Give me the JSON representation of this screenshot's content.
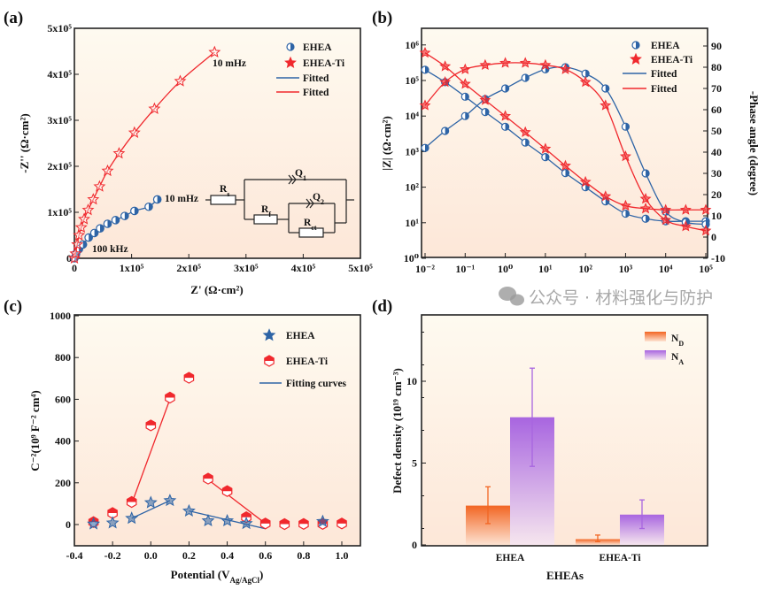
{
  "watermark": "公众号 · 材料强化与防护",
  "colors": {
    "ehea": "#2e64a6",
    "ehea_ti": "#f0282d",
    "nd": "#f26522",
    "na": "#a865e0",
    "bg_top": "#fefaf0",
    "bg_bottom": "#fde7d8"
  },
  "chart_data": [
    {
      "panel": "(a)",
      "type": "scatter",
      "xlabel": "Z' (Ω·cm²)",
      "ylabel": "-Z'' (Ω·cm²)",
      "xlim": [
        0,
        500000
      ],
      "ylim": [
        0,
        500000
      ],
      "xticks": [
        "0",
        "1x10⁵",
        "2x10⁵",
        "3x10⁵",
        "4x10⁵",
        "5x10⁵"
      ],
      "yticks": [
        "0",
        "1x10⁵",
        "2x10⁵",
        "3x10⁵",
        "4x10⁵",
        "5x10⁵"
      ],
      "legend": [
        "EHEA",
        "EHEA-Ti",
        "Fitted",
        "Fitted"
      ],
      "legend_position": "top-right",
      "annotations": {
        "ehea_end": "10 mHz",
        "ti_end": "10 mHz",
        "high_freq": "100 kHz"
      },
      "circuit": {
        "rs": [
          "R",
          "s"
        ],
        "q1": [
          "Q",
          "1"
        ],
        "rf": [
          "R",
          "f"
        ],
        "q2": [
          "Q",
          "2"
        ],
        "rct": [
          "R",
          "ct"
        ]
      },
      "series": [
        {
          "name": "EHEA",
          "x": [
            0,
            3000,
            8000,
            15000,
            25000,
            35000,
            45000,
            58000,
            72000,
            88000,
            105000,
            130000,
            145000
          ],
          "y": [
            0,
            10000,
            20000,
            30000,
            45000,
            55000,
            65000,
            75000,
            83000,
            92000,
            103000,
            112000,
            128000
          ]
        },
        {
          "name": "EHEA-Ti",
          "x": [
            0,
            2000,
            5000,
            8000,
            12000,
            17000,
            24000,
            33000,
            44000,
            58000,
            78000,
            105000,
            140000,
            185000,
            245000
          ],
          "y": [
            0,
            10000,
            30000,
            50000,
            67000,
            85000,
            105000,
            128000,
            156000,
            190000,
            228000,
            273000,
            325000,
            385000,
            448000
          ]
        }
      ]
    },
    {
      "panel": "(b)",
      "type": "line",
      "xlabel": "",
      "ylabel": "|Z| (Ω·cm²)",
      "y2label": "-Phase angle (degree)",
      "xscale": "log",
      "yscale": "log",
      "xlim": [
        0.01,
        100000
      ],
      "ylim": [
        1,
        3000000
      ],
      "y2lim": [
        -10,
        98
      ],
      "xticks": [
        "10⁻²",
        "10⁻¹",
        "10⁰",
        "10¹",
        "10²",
        "10³",
        "10⁴",
        "10⁵"
      ],
      "yticks": [
        "10⁰",
        "10¹",
        "10²",
        "10³",
        "10⁴",
        "10⁵",
        "10⁶"
      ],
      "y2ticks": [
        "-10",
        "0",
        "10",
        "20",
        "30",
        "40",
        "50",
        "60",
        "70",
        "80",
        "90"
      ],
      "legend": [
        "EHEA",
        "EHEA-Ti",
        "Fitted",
        "Fitted"
      ],
      "legend_position": "top-right",
      "frequency": [
        0.01,
        0.0316,
        0.1,
        0.316,
        1,
        3.16,
        10,
        31.6,
        100,
        316,
        1000,
        3162,
        10000,
        31623,
        100000
      ],
      "series": [
        {
          "name": "EHEA",
          "modulus": [
            200000,
            90000,
            35000,
            13000,
            5000,
            1800,
            700,
            250,
            100,
            40,
            18,
            13,
            11,
            11,
            11
          ],
          "phase": [
            42,
            50,
            57,
            65,
            70,
            75,
            79,
            80,
            77,
            70,
            52,
            30,
            12,
            7,
            6
          ]
        },
        {
          "name": "EHEA-Ti",
          "modulus": [
            600000,
            250000,
            80000,
            28000,
            10000,
            3500,
            1200,
            400,
            140,
            55,
            30,
            25,
            23,
            23,
            23
          ],
          "phase": [
            62,
            73,
            79,
            81,
            82,
            82,
            81,
            79,
            73,
            62,
            38,
            18,
            8,
            5,
            3
          ]
        }
      ]
    },
    {
      "panel": "(c)",
      "type": "scatter",
      "xlabel": "Potential (V",
      "xlabel_sub": "Ag/AgCl",
      "xlabel_end": ")",
      "ylabel": "C⁻²(10⁹ F⁻² cm⁴)",
      "xlim": [
        -0.4,
        1.1
      ],
      "ylim": [
        -100,
        1000
      ],
      "xticks": [
        "-0.4",
        "-0.2",
        "0.0",
        "0.2",
        "0.4",
        "0.6",
        "0.8",
        "1.0"
      ],
      "yticks": [
        "0",
        "200",
        "400",
        "600",
        "800",
        "1000"
      ],
      "legend": [
        "EHEA",
        "EHEA-Ti",
        "Fitting curves"
      ],
      "legend_position": "top-right",
      "series": [
        {
          "name": "EHEA",
          "x": [
            -0.3,
            -0.2,
            -0.1,
            0.0,
            0.1,
            0.2,
            0.3,
            0.4,
            0.5,
            0.9
          ],
          "y": [
            3,
            8,
            30,
            105,
            115,
            65,
            18,
            18,
            5,
            15
          ]
        },
        {
          "name": "EHEA-Ti",
          "x": [
            -0.3,
            -0.2,
            -0.1,
            0.0,
            0.1,
            0.2,
            0.3,
            0.4,
            0.5,
            0.6,
            0.7,
            0.8,
            0.9,
            1.0
          ],
          "y": [
            12,
            55,
            108,
            475,
            608,
            703,
            220,
            160,
            35,
            5,
            2,
            3,
            3,
            5
          ]
        }
      ],
      "fits": [
        {
          "series": "EHEA",
          "x": [
            -0.1,
            0.1
          ],
          "y": [
            30,
            115
          ]
        },
        {
          "series": "EHEA",
          "x": [
            0.2,
            0.6
          ],
          "y": [
            65,
            -20
          ]
        },
        {
          "series": "EHEA-Ti",
          "x": [
            -0.1,
            0.1
          ],
          "y": [
            100,
            600
          ]
        },
        {
          "series": "EHEA-Ti",
          "x": [
            0.3,
            0.6
          ],
          "y": [
            215,
            5
          ]
        }
      ]
    },
    {
      "panel": "(d)",
      "type": "bar",
      "xlabel": "EHEAs",
      "ylabel": "Defect density (10¹⁹ cm⁻³)",
      "categories": [
        "EHEA",
        "EHEA-Ti"
      ],
      "ylim": [
        0,
        14
      ],
      "yticks": [
        "0",
        "5",
        "10"
      ],
      "legend": [
        [
          "N",
          "D"
        ],
        [
          "N",
          "A"
        ]
      ],
      "legend_position": "top-right",
      "series": [
        {
          "name": "N_D",
          "values": [
            2.4,
            0.35
          ],
          "err_low": [
            1.3,
            0.2
          ],
          "err_high": [
            3.55,
            0.6
          ]
        },
        {
          "name": "N_A",
          "values": [
            7.8,
            1.85
          ],
          "err_low": [
            4.8,
            1.0
          ],
          "err_high": [
            10.8,
            2.75
          ]
        }
      ]
    }
  ]
}
